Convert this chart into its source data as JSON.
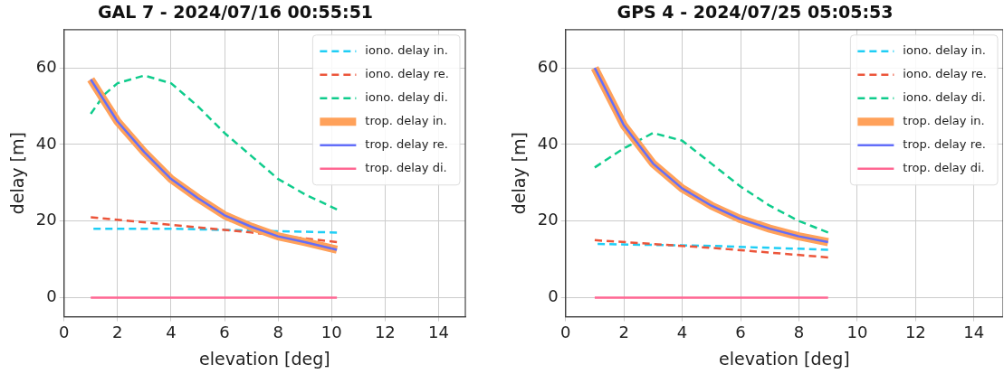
{
  "chart_data": [
    {
      "type": "line",
      "title": "GAL 7 - 2024/07/16 00:55:51",
      "xlabel": "elevation [deg]",
      "ylabel": "delay [m]",
      "xlim": [
        0,
        15
      ],
      "ylim": [
        -5,
        70
      ],
      "xticks": [
        0,
        2,
        4,
        6,
        8,
        10,
        12,
        14
      ],
      "yticks": [
        0,
        20,
        40,
        60
      ],
      "grid": true,
      "legend": "top right",
      "marker": "none",
      "series": [
        {
          "name": "iono. delay in.",
          "color": "#1fcef5",
          "line_style": "dashed",
          "x": [
            1.1,
            4,
            7,
            10.2
          ],
          "values": [
            18,
            18,
            17.5,
            17
          ]
        },
        {
          "name": "iono. delay re.",
          "color": "#ec553a",
          "line_style": "dashed",
          "x": [
            1,
            4,
            7,
            10.2
          ],
          "values": [
            21,
            19,
            17,
            14.5
          ]
        },
        {
          "name": "iono. delay di.",
          "color": "#0fcc8c",
          "line_style": "dashed",
          "x": [
            1,
            1.5,
            2,
            3,
            4,
            5,
            6,
            7,
            8,
            9,
            10.2
          ],
          "values": [
            48,
            53,
            56,
            58,
            56,
            50,
            43,
            37,
            31,
            27,
            23
          ]
        },
        {
          "name": "trop. delay in.",
          "color": "#ffa15a",
          "line_style": "solid",
          "x": [
            1,
            2,
            3,
            4,
            5,
            6,
            7,
            8,
            9,
            10.2
          ],
          "values": [
            57,
            46,
            38,
            31,
            26,
            21.5,
            18.5,
            16,
            14.5,
            12.5
          ]
        },
        {
          "name": "trop. delay re.",
          "color": "#636efa",
          "line_style": "solid",
          "x": [
            1,
            2,
            3,
            4,
            5,
            6,
            7,
            8,
            9,
            10.2
          ],
          "values": [
            57,
            46,
            38,
            31,
            26,
            21.5,
            18.5,
            16,
            14.5,
            12.5
          ]
        },
        {
          "name": "trop. delay di.",
          "color": "#ff6692",
          "line_style": "solid",
          "x": [
            1,
            10.2
          ],
          "values": [
            0,
            0
          ]
        }
      ]
    },
    {
      "type": "line",
      "title": "GPS 4 - 2024/07/25 05:05:53",
      "xlabel": "elevation [deg]",
      "ylabel": "delay [m]",
      "xlim": [
        0,
        15
      ],
      "ylim": [
        -5,
        70
      ],
      "xticks": [
        0,
        2,
        4,
        6,
        8,
        10,
        12,
        14
      ],
      "yticks": [
        0,
        20,
        40,
        60
      ],
      "grid": true,
      "legend": "top right",
      "marker": "none",
      "series": [
        {
          "name": "iono. delay in.",
          "color": "#1fcef5",
          "line_style": "dashed",
          "x": [
            1.1,
            5,
            9
          ],
          "values": [
            14,
            13.5,
            12.5
          ]
        },
        {
          "name": "iono. delay re.",
          "color": "#ec553a",
          "line_style": "dashed",
          "x": [
            1,
            5,
            9
          ],
          "values": [
            15,
            13,
            10.5
          ]
        },
        {
          "name": "iono. delay di.",
          "color": "#0fcc8c",
          "line_style": "dashed",
          "x": [
            1,
            2,
            3,
            4,
            5,
            6,
            7,
            8,
            9
          ],
          "values": [
            34,
            39,
            43,
            41,
            35,
            29,
            24,
            20,
            17
          ]
        },
        {
          "name": "trop. delay in.",
          "color": "#ffa15a",
          "line_style": "solid",
          "x": [
            1,
            2,
            3,
            4,
            5,
            6,
            7,
            8,
            9
          ],
          "values": [
            60,
            45,
            35,
            28.5,
            24,
            20.5,
            18,
            16,
            14.5
          ]
        },
        {
          "name": "trop. delay re.",
          "color": "#636efa",
          "line_style": "solid",
          "x": [
            1,
            2,
            3,
            4,
            5,
            6,
            7,
            8,
            9
          ],
          "values": [
            60,
            45,
            35,
            28.5,
            24,
            20.5,
            18,
            16,
            14.5
          ]
        },
        {
          "name": "trop. delay di.",
          "color": "#ff6692",
          "line_style": "solid",
          "x": [
            1,
            9
          ],
          "values": [
            0,
            0
          ]
        }
      ]
    }
  ]
}
